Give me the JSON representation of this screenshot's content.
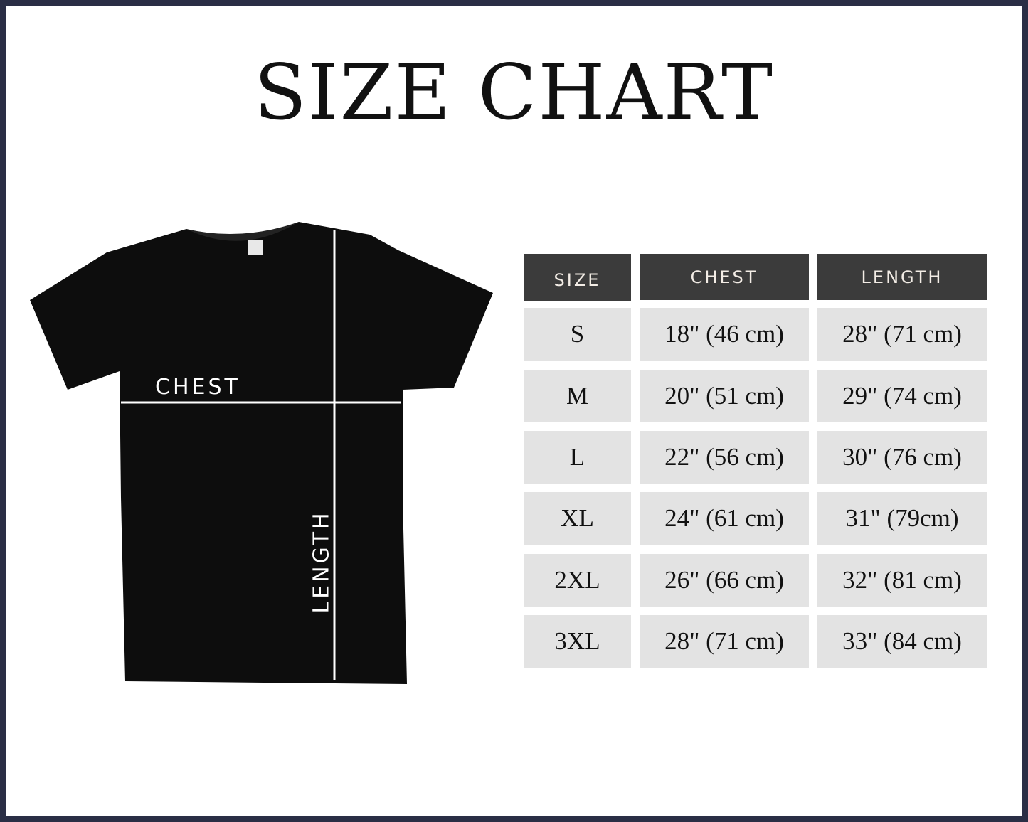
{
  "title": "SIZE CHART",
  "diagram": {
    "chest_label": "CHEST",
    "length_label": "LENGTH"
  },
  "colors": {
    "border": "#2a2e45",
    "header_bg": "#3b3b3b",
    "cell_bg": "#e3e3e3",
    "shirt": "#0d0d0d"
  },
  "table": {
    "headers": [
      "SIZE",
      "CHEST",
      "LENGTH"
    ],
    "rows": [
      [
        "S",
        "18\" (46 cm)",
        "28\" (71 cm)"
      ],
      [
        "M",
        "20\" (51 cm)",
        "29\" (74 cm)"
      ],
      [
        "L",
        "22\" (56 cm)",
        "30\" (76 cm)"
      ],
      [
        "XL",
        "24\" (61 cm)",
        "31\" (79cm)"
      ],
      [
        "2XL",
        "26\" (66 cm)",
        "32\" (81 cm)"
      ],
      [
        "3XL",
        "28\" (71 cm)",
        "33\" (84 cm)"
      ]
    ]
  }
}
